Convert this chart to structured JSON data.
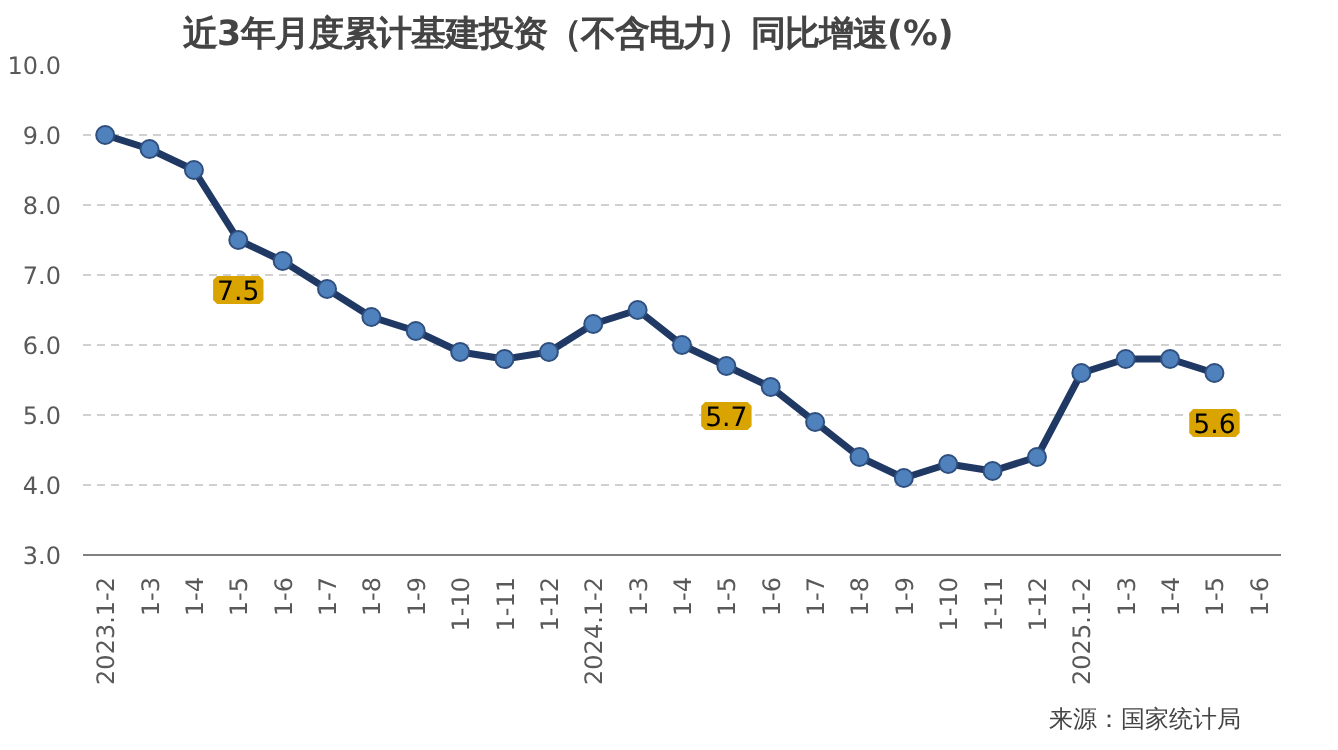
{
  "chart_data": {
    "type": "line",
    "title": "近3年月度累计基建投资（不含电力）同比增速(%)",
    "categories": [
      "2023.1-2",
      "1-3",
      "1-4",
      "1-5",
      "1-6",
      "1-7",
      "1-8",
      "1-9",
      "1-10",
      "1-11",
      "1-12",
      "2024.1-2",
      "1-3",
      "1-4",
      "1-5",
      "1-6",
      "1-7",
      "1-8",
      "1-9",
      "1-10",
      "1-11",
      "1-12",
      "2025.1-2",
      "1-3",
      "1-4",
      "1-5",
      "1-6"
    ],
    "series": [
      {
        "color": "#1f3864",
        "values": [
          9.0,
          8.8,
          8.5,
          7.5,
          7.2,
          6.8,
          6.4,
          6.2,
          5.9,
          5.8,
          5.9,
          6.3,
          6.5,
          6.0,
          5.7,
          5.4,
          4.9,
          4.4,
          4.1,
          4.3,
          4.2,
          4.4,
          5.6,
          5.8,
          5.8,
          5.6,
          null
        ],
        "value_labels": [
          null,
          null,
          null,
          "7.5",
          null,
          null,
          null,
          null,
          null,
          null,
          null,
          null,
          null,
          null,
          "5.7",
          null,
          null,
          null,
          null,
          null,
          null,
          null,
          null,
          null,
          null,
          "5.6",
          null
        ]
      }
    ],
    "ylim": [
      3.0,
      10.0
    ],
    "yticks": [
      {
        "value": 3,
        "label": "3.0"
      },
      {
        "value": 4,
        "label": "4.0"
      },
      {
        "value": 5,
        "label": "5.0"
      },
      {
        "value": 6,
        "label": "6.0"
      },
      {
        "value": 7,
        "label": "7.0"
      },
      {
        "value": 8,
        "label": "8.0"
      },
      {
        "value": 9,
        "label": "9.0"
      },
      {
        "value": 10,
        "label": "10.0"
      }
    ],
    "grid": "y",
    "marker": "circle",
    "line_style": "solid",
    "annotations": [
      "来源：国家统计局"
    ]
  }
}
